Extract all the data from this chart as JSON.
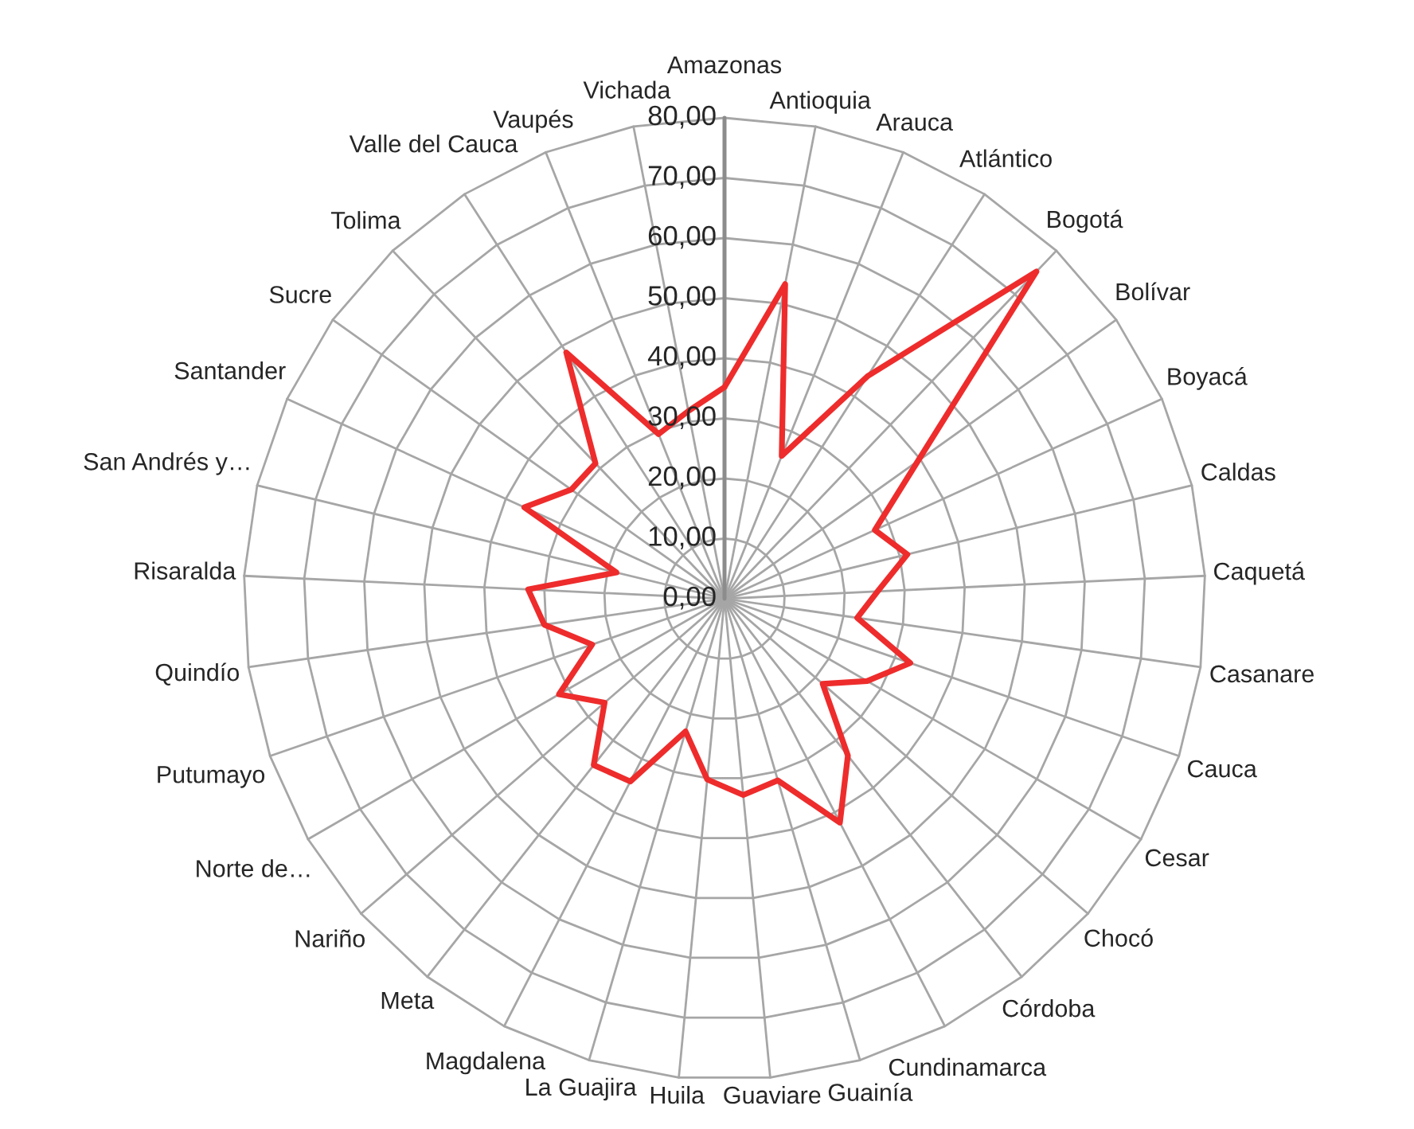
{
  "chart_data": {
    "type": "radar",
    "categories": [
      "Amazonas",
      "Antioquia",
      "Arauca",
      "Atlántico",
      "Bogotá",
      "Bolívar",
      "Boyacá",
      "Caldas",
      "Caquetá",
      "Casanare",
      "Cauca",
      "Cesar",
      "Chocó",
      "Córdoba",
      "Cundinamarca",
      "Guainía",
      "Guaviare",
      "Huila",
      "La Guajira",
      "Magdalena",
      "Meta",
      "Nariño",
      "Norte de…",
      "Putumayo",
      "Quindío",
      "Risaralda",
      "San Andrés y…",
      "Santander",
      "Sucre",
      "Tolima",
      "Valle del Cauca",
      "Vaupés",
      "Vichada"
    ],
    "series": [
      {
        "color": "#ee2c2c",
        "values": [
          35.2,
          53.3,
          25.6,
          44.0,
          75.2,
          39.5,
          27.5,
          31.3,
          25.5,
          22.3,
          32.7,
          27.4,
          21.6,
          33.2,
          41.9,
          31.5,
          32.8,
          30.2,
          23.0,
          34.2,
          35.2,
          26.4,
          31.8,
          23.3,
          30.3,
          32.7,
          18.5,
          36.6,
          31.3,
          31.1,
          48.7,
          29.5,
          31.8
        ]
      }
    ],
    "ylim": [
      0,
      80
    ],
    "yticks": [
      {
        "value": 0,
        "label": "0,00"
      },
      {
        "value": 10,
        "label": "10,00"
      },
      {
        "value": 20,
        "label": "20,00"
      },
      {
        "value": 30,
        "label": "30,00"
      },
      {
        "value": 40,
        "label": "40,00"
      },
      {
        "value": 50,
        "label": "50,00"
      },
      {
        "value": 60,
        "label": "60,00"
      },
      {
        "value": 70,
        "label": "70,00"
      },
      {
        "value": 80,
        "label": "80,00"
      }
    ],
    "grid": true
  }
}
